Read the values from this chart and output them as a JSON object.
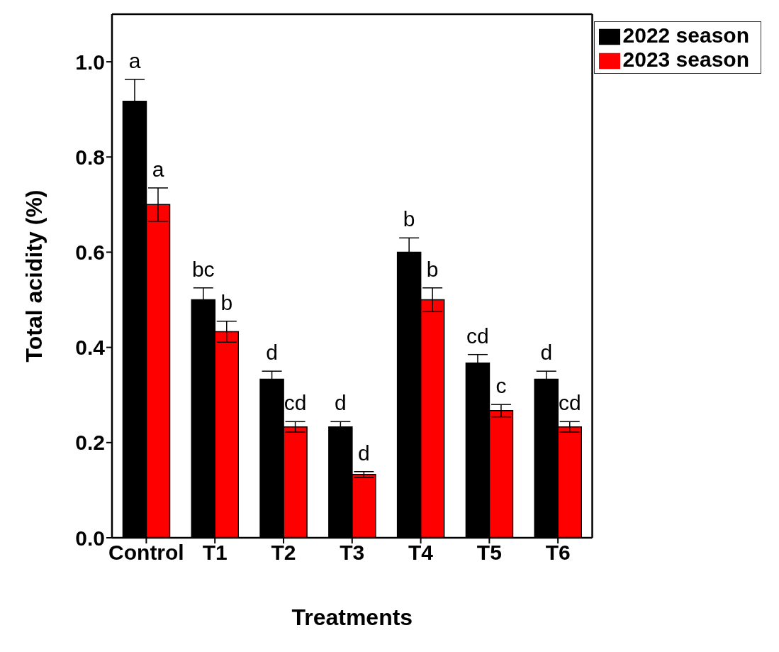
{
  "chart_data": {
    "type": "bar",
    "xlabel": "Treatments",
    "ylabel": "Total acidity (%)",
    "categories": [
      "Control",
      "T1",
      "T2",
      "T3",
      "T4",
      "T5",
      "T6"
    ],
    "series": [
      {
        "name": "2022 season",
        "color": "#000000",
        "values": [
          0.917,
          0.5,
          0.333,
          0.233,
          0.6,
          0.367,
          0.333
        ],
        "errors": [
          0.046,
          0.025,
          0.017,
          0.011,
          0.03,
          0.018,
          0.017
        ],
        "value_labels": [
          "a",
          "bc",
          "d",
          "d",
          "b",
          "cd",
          "d"
        ]
      },
      {
        "name": "2023 season",
        "color": "#ff0000",
        "values": [
          0.7,
          0.433,
          0.233,
          0.133,
          0.5,
          0.267,
          0.233
        ],
        "errors": [
          0.035,
          0.022,
          0.011,
          0.006,
          0.025,
          0.013,
          0.011
        ],
        "value_labels": [
          "a",
          "b",
          "cd",
          "d",
          "b",
          "c",
          "cd"
        ]
      }
    ],
    "ylim": [
      0,
      1.1
    ],
    "yticks": [
      {
        "value": 0,
        "label": "0.0"
      },
      {
        "value": 0.2,
        "label": "0.2"
      },
      {
        "value": 0.4,
        "label": "0.4"
      },
      {
        "value": 0.6,
        "label": "0.6"
      },
      {
        "value": 0.8,
        "label": "0.8"
      },
      {
        "value": 1.0,
        "label": "1.0"
      }
    ],
    "grid": false,
    "legend": "top right"
  }
}
